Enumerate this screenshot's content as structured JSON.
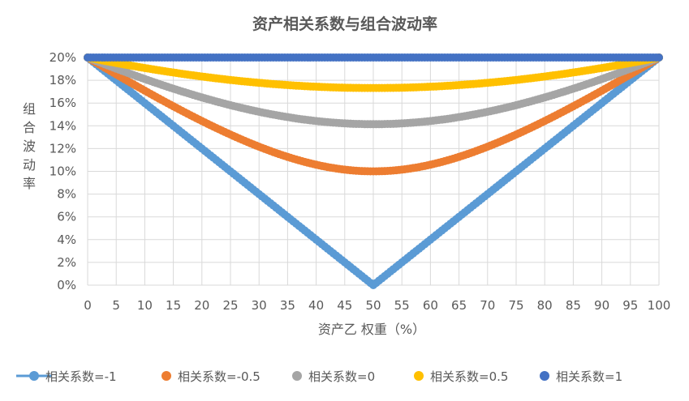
{
  "chart_data": {
    "type": "line",
    "title": "资产相关系数与组合波动率",
    "xlabel": "资产乙 权重（%）",
    "ylabel": "组合波动率",
    "xlim": [
      0,
      100
    ],
    "ylim": [
      0,
      0.2
    ],
    "x_ticks": [
      "0",
      "5",
      "10",
      "15",
      "20",
      "25",
      "30",
      "35",
      "40",
      "45",
      "50",
      "55",
      "60",
      "65",
      "70",
      "75",
      "80",
      "85",
      "90",
      "95",
      "100"
    ],
    "y_ticks": [
      "0%",
      "2%",
      "4%",
      "6%",
      "8%",
      "10%",
      "12%",
      "14%",
      "16%",
      "18%",
      "20%"
    ],
    "grid": true,
    "legend_position": "bottom",
    "sample_step": 0.5,
    "asset_volatility": 0.2,
    "series": [
      {
        "name": "相关系数=-1",
        "correlation": -1,
        "color": "#5B9BD5",
        "summary": {
          "w0": 0.2,
          "w50": 0.0,
          "w100": 0.2
        }
      },
      {
        "name": "相关系数=-0.5",
        "correlation": -0.5,
        "color": "#ED7D31",
        "summary": {
          "w0": 0.2,
          "w50": 0.1,
          "w100": 0.2
        }
      },
      {
        "name": "相关系数=0",
        "correlation": 0,
        "color": "#A5A5A5",
        "summary": {
          "w0": 0.2,
          "w50": 0.1414,
          "w100": 0.2
        }
      },
      {
        "name": "相关系数=0.5",
        "correlation": 0.5,
        "color": "#FFC000",
        "summary": {
          "w0": 0.2,
          "w50": 0.1732,
          "w100": 0.2
        }
      },
      {
        "name": "相关系数=1",
        "correlation": 1,
        "color": "#4472C4",
        "summary": {
          "w0": 0.2,
          "w50": 0.2,
          "w100": 0.2
        }
      }
    ]
  }
}
